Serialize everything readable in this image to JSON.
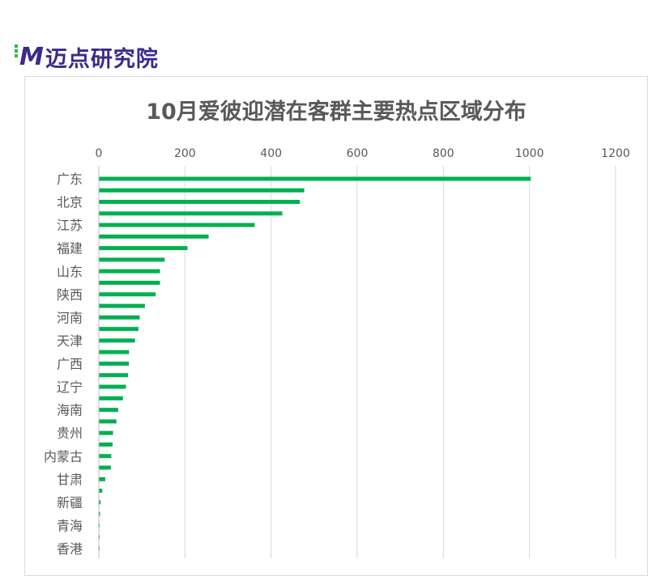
{
  "brand": {
    "name": "迈点研究院",
    "colors": {
      "logo": "#3b2a8c",
      "accent": "#2db84d"
    }
  },
  "chart_data": {
    "type": "bar",
    "orientation": "horizontal",
    "title": "10月爱彼迎潜在客群主要热点区域分布",
    "bar_color": "#00b050",
    "xlim": [
      0,
      1200
    ],
    "x_ticks": [
      "0",
      "200",
      "400",
      "600",
      "800",
      "1000",
      "1200"
    ],
    "categories": [
      "广东",
      "",
      "北京",
      "",
      "江苏",
      "",
      "福建",
      "",
      "山东",
      "",
      "陕西",
      "",
      "河南",
      "",
      "天津",
      "",
      "广西",
      "",
      "辽宁",
      "",
      "海南",
      "",
      "贵州",
      "",
      "内蒙古",
      "",
      "甘肃",
      "",
      "新疆",
      "",
      "青海",
      "",
      "香港"
    ],
    "values": [
      1003,
      477,
      467,
      426,
      362,
      255,
      206,
      153,
      142,
      142,
      132,
      107,
      95,
      92,
      84,
      70,
      70,
      68,
      63,
      56,
      45,
      41,
      33,
      32,
      29,
      28,
      15,
      8,
      4,
      3,
      2,
      2,
      1
    ],
    "grid": true,
    "legend": "none"
  }
}
